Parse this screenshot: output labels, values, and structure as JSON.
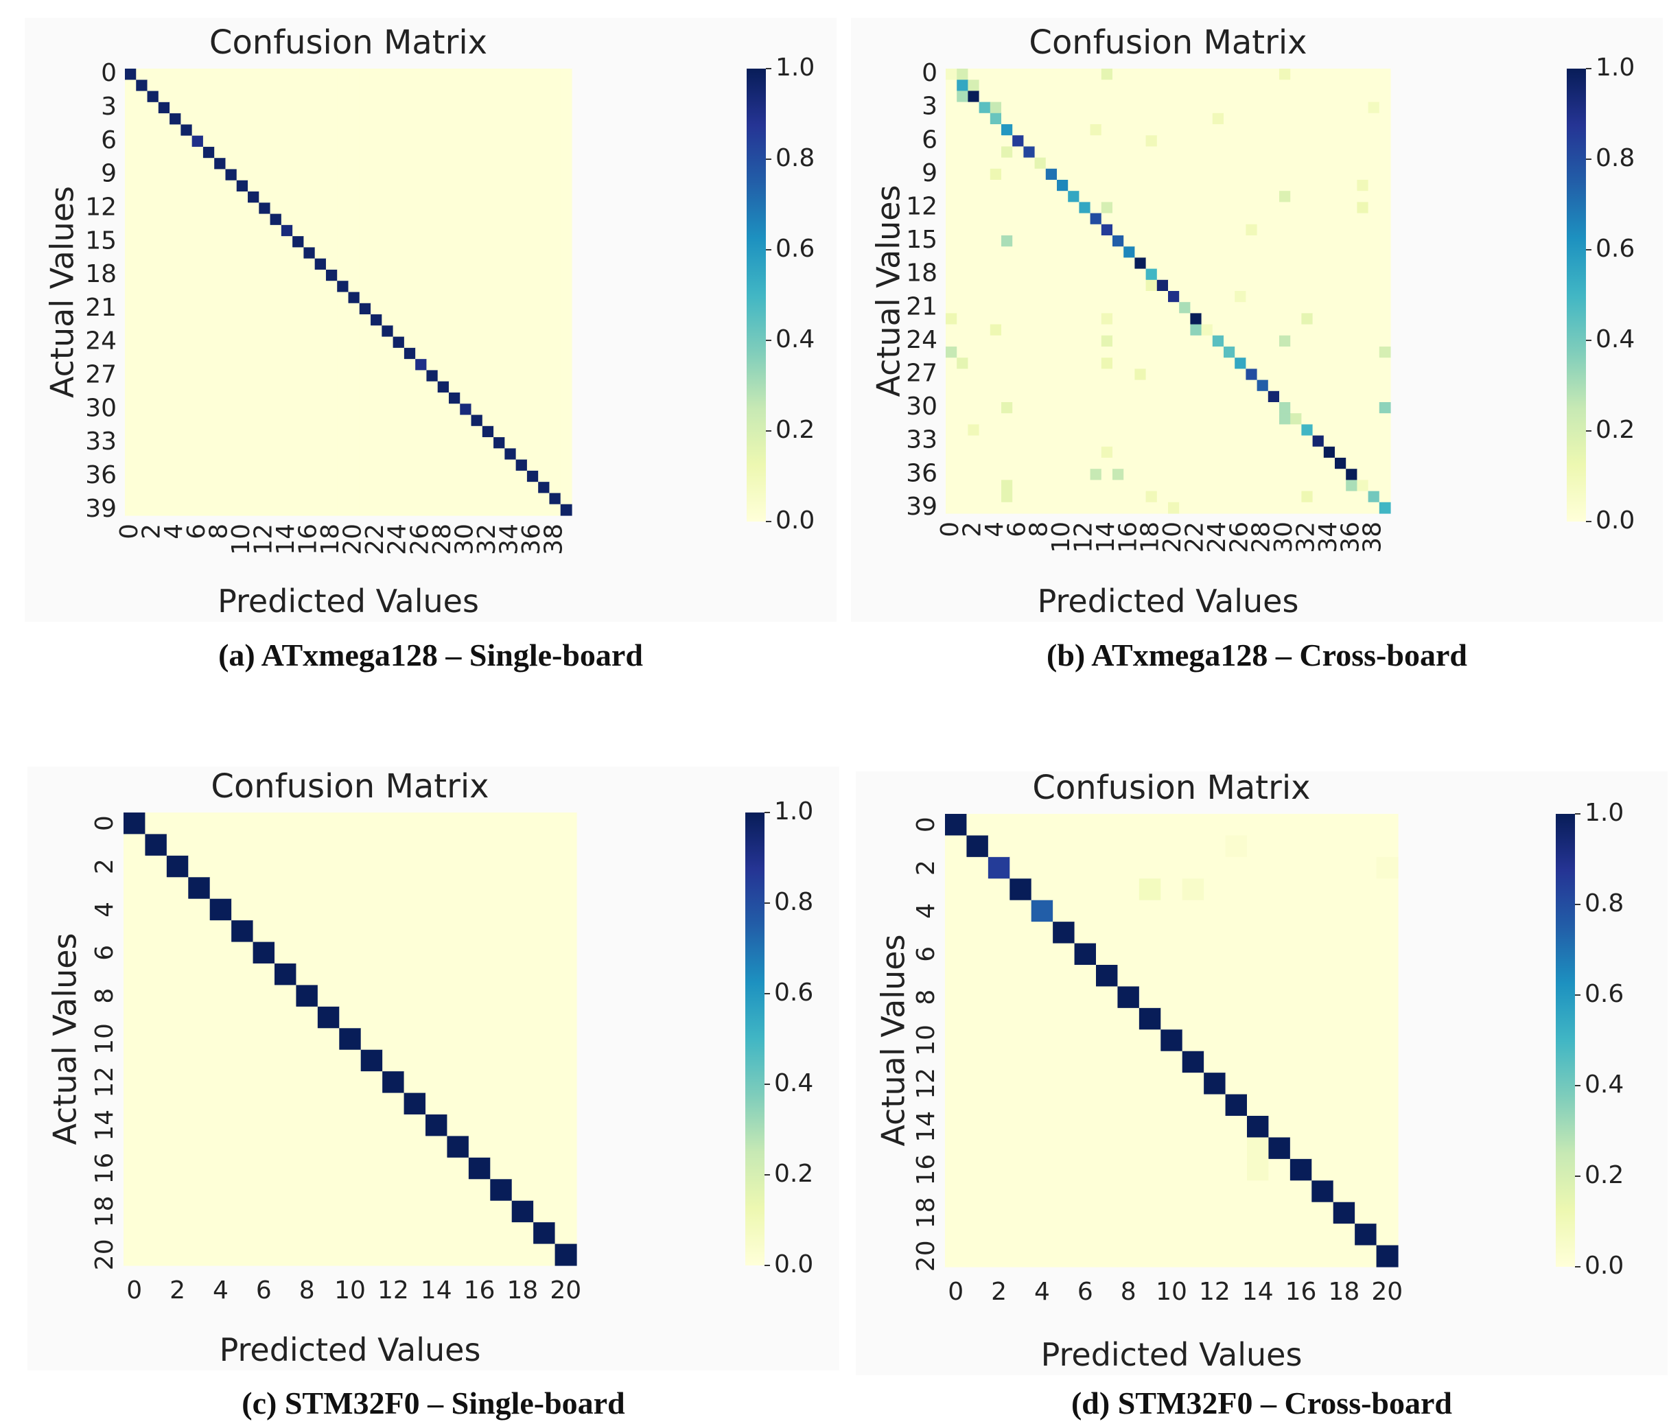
{
  "chart_data": [
    {
      "type": "heatmap",
      "caption": "(a) ATxmega128 – Single-board",
      "title": "Confusion Matrix",
      "xlabel": "Predicted Values",
      "ylabel": "Actual Values",
      "n_classes": 40,
      "x_ticks": [
        0,
        2,
        4,
        6,
        8,
        10,
        12,
        14,
        16,
        18,
        20,
        22,
        24,
        26,
        28,
        30,
        32,
        34,
        36,
        38
      ],
      "y_ticks": [
        0,
        3,
        6,
        9,
        12,
        15,
        18,
        21,
        24,
        27,
        30,
        33,
        36,
        39
      ],
      "x_tick_rotation": 90,
      "y_tick_rotation": 0,
      "colorbar": {
        "min": 0.0,
        "max": 1.0,
        "ticks": [
          "0.0",
          "0.2",
          "0.4",
          "0.6",
          "0.8",
          "1.0"
        ],
        "colormap": "YlGnBu"
      },
      "diagonal": {
        "default": 0.97,
        "overrides": [
          [
            6,
            0.9
          ],
          [
            14,
            0.93
          ],
          [
            26,
            0.9
          ],
          [
            30,
            0.93
          ]
        ]
      },
      "off_diagonal": []
    },
    {
      "type": "heatmap",
      "caption": "(b) ATxmega128 – Cross-board",
      "title": "Confusion Matrix",
      "xlabel": "Predicted Values",
      "ylabel": "Actual Values",
      "n_classes": 40,
      "x_ticks": [
        0,
        2,
        4,
        6,
        8,
        10,
        12,
        14,
        16,
        18,
        20,
        22,
        24,
        26,
        28,
        30,
        32,
        34,
        36,
        38
      ],
      "y_ticks": [
        0,
        3,
        6,
        9,
        12,
        15,
        18,
        21,
        24,
        27,
        30,
        33,
        36,
        39
      ],
      "x_tick_rotation": 90,
      "y_tick_rotation": 0,
      "colorbar": {
        "min": 0.0,
        "max": 1.0,
        "ticks": [
          "0.0",
          "0.2",
          "0.4",
          "0.6",
          "0.8",
          "1.0"
        ],
        "colormap": "YlGnBu"
      },
      "diagonal": {
        "default": 0.85,
        "overrides": [
          [
            0,
            0.06
          ],
          [
            1,
            0.55
          ],
          [
            2,
            1.0
          ],
          [
            3,
            0.45
          ],
          [
            4,
            0.42
          ],
          [
            5,
            0.6
          ],
          [
            7,
            0.82
          ],
          [
            9,
            0.7
          ],
          [
            10,
            0.65
          ],
          [
            11,
            0.55
          ],
          [
            12,
            0.55
          ],
          [
            13,
            0.8
          ],
          [
            15,
            0.75
          ],
          [
            16,
            0.65
          ],
          [
            17,
            1.0
          ],
          [
            18,
            0.5
          ],
          [
            19,
            0.95
          ],
          [
            20,
            0.9
          ],
          [
            21,
            0.3
          ],
          [
            22,
            1.0
          ],
          [
            23,
            0.08
          ],
          [
            24,
            0.45
          ],
          [
            25,
            0.45
          ],
          [
            26,
            0.55
          ],
          [
            27,
            0.8
          ],
          [
            28,
            0.75
          ],
          [
            29,
            0.95
          ],
          [
            30,
            0.3
          ],
          [
            31,
            0.6
          ],
          [
            32,
            0.5
          ],
          [
            33,
            0.95
          ],
          [
            34,
            1.0
          ],
          [
            35,
            1.0
          ],
          [
            36,
            1.0
          ],
          [
            37,
            0.08
          ],
          [
            38,
            0.4
          ],
          [
            39,
            0.5
          ]
        ]
      },
      "off_diagonal": [
        [
          0,
          1,
          0.2
        ],
        [
          2,
          1,
          0.3
        ],
        [
          23,
          22,
          0.35
        ],
        [
          37,
          36,
          0.3
        ],
        [
          31,
          30,
          0.3
        ],
        [
          0,
          14,
          0.15
        ],
        [
          0,
          30,
          0.1
        ],
        [
          1,
          2,
          0.2
        ],
        [
          3,
          4,
          0.25
        ],
        [
          5,
          13,
          0.1
        ],
        [
          4,
          24,
          0.1
        ],
        [
          7,
          5,
          0.15
        ],
        [
          8,
          8,
          0.15
        ],
        [
          9,
          4,
          0.12
        ],
        [
          11,
          30,
          0.18
        ],
        [
          12,
          14,
          0.2
        ],
        [
          12,
          37,
          0.12
        ],
        [
          15,
          5,
          0.3
        ],
        [
          19,
          18,
          0.12
        ],
        [
          22,
          0,
          0.12
        ],
        [
          22,
          14,
          0.1
        ],
        [
          22,
          32,
          0.15
        ],
        [
          23,
          4,
          0.12
        ],
        [
          24,
          30,
          0.25
        ],
        [
          24,
          14,
          0.15
        ],
        [
          25,
          0,
          0.25
        ],
        [
          25,
          39,
          0.2
        ],
        [
          26,
          14,
          0.12
        ],
        [
          26,
          1,
          0.15
        ],
        [
          27,
          17,
          0.12
        ],
        [
          30,
          39,
          0.35
        ],
        [
          30,
          5,
          0.15
        ],
        [
          31,
          31,
          0.2
        ],
        [
          32,
          2,
          0.1
        ],
        [
          34,
          14,
          0.1
        ],
        [
          36,
          13,
          0.25
        ],
        [
          36,
          15,
          0.25
        ],
        [
          37,
          5,
          0.15
        ],
        [
          38,
          5,
          0.15
        ],
        [
          38,
          32,
          0.12
        ],
        [
          38,
          18,
          0.1
        ],
        [
          39,
          20,
          0.1
        ],
        [
          6,
          18,
          0.1
        ],
        [
          10,
          37,
          0.1
        ],
        [
          14,
          27,
          0.1
        ],
        [
          20,
          26,
          0.08
        ],
        [
          3,
          38,
          0.08
        ]
      ]
    },
    {
      "type": "heatmap",
      "caption": "(c) STM32F0 – Single-board",
      "title": "Confusion Matrix",
      "xlabel": "Predicted Values",
      "ylabel": "Actual Values",
      "n_classes": 21,
      "x_ticks": [
        0,
        2,
        4,
        6,
        8,
        10,
        12,
        14,
        16,
        18,
        20
      ],
      "y_ticks": [
        0,
        2,
        4,
        6,
        8,
        10,
        12,
        14,
        16,
        18,
        20
      ],
      "x_tick_rotation": 0,
      "y_tick_rotation": -90,
      "colorbar": {
        "min": 0.0,
        "max": 1.0,
        "ticks": [
          "0.0",
          "0.2",
          "0.4",
          "0.6",
          "0.8",
          "1.0"
        ],
        "colormap": "YlGnBu"
      },
      "diagonal": {
        "default": 1.0,
        "overrides": []
      },
      "off_diagonal": []
    },
    {
      "type": "heatmap",
      "caption": "(d) STM32F0 – Cross-board",
      "title": "Confusion Matrix",
      "xlabel": "Predicted Values",
      "ylabel": "Actual Values",
      "n_classes": 21,
      "x_ticks": [
        0,
        2,
        4,
        6,
        8,
        10,
        12,
        14,
        16,
        18,
        20
      ],
      "y_ticks": [
        0,
        2,
        4,
        6,
        8,
        10,
        12,
        14,
        16,
        18,
        20
      ],
      "x_tick_rotation": 0,
      "y_tick_rotation": -90,
      "colorbar": {
        "min": 0.0,
        "max": 1.0,
        "ticks": [
          "0.0",
          "0.2",
          "0.4",
          "0.6",
          "0.8",
          "1.0"
        ],
        "colormap": "YlGnBu"
      },
      "diagonal": {
        "default": 1.0,
        "overrides": [
          [
            2,
            0.85
          ],
          [
            4,
            0.75
          ]
        ]
      },
      "off_diagonal": [
        [
          3,
          9,
          0.08
        ],
        [
          3,
          11,
          0.05
        ],
        [
          15,
          14,
          0.05
        ],
        [
          16,
          14,
          0.05
        ],
        [
          2,
          20,
          0.03
        ],
        [
          1,
          13,
          0.03
        ]
      ]
    }
  ]
}
